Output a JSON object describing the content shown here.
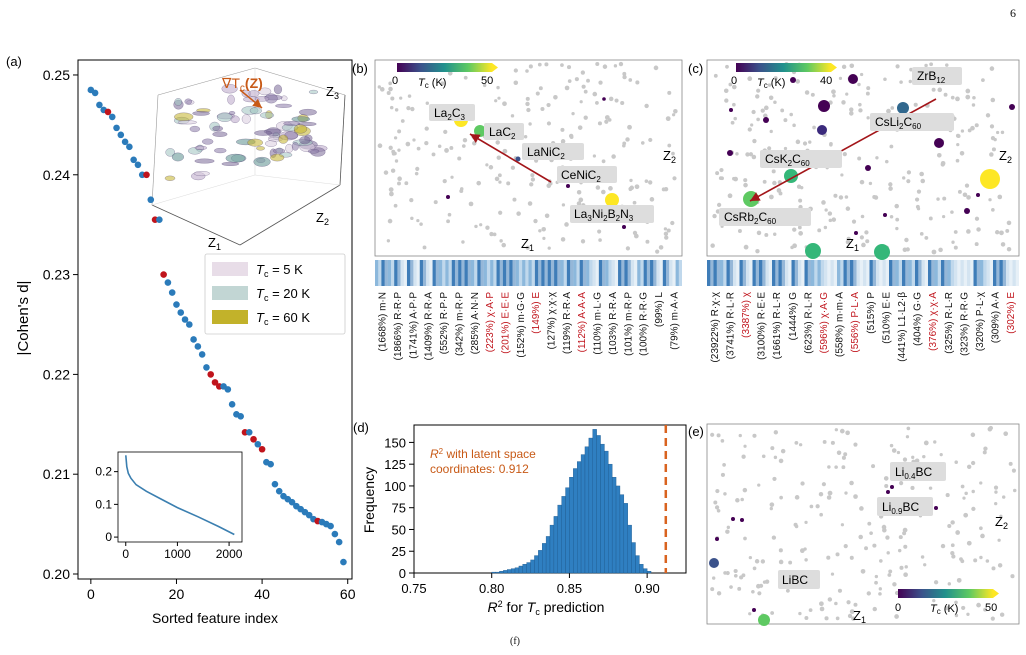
{
  "page": {
    "number": "6",
    "bottom_caption": "(f)"
  },
  "colors": {
    "point_blue": "#2b7bba",
    "point_red": "#c0141c",
    "line_blue": "#3b7fb0",
    "hist_blue": "#2f7fc1",
    "dashed_orange": "#d9631f",
    "annotation_orange": "#c85a17",
    "arrow_red": "#a3161a",
    "bg_gray": "#c8c8c8",
    "label_box": "#dddddd",
    "highlight_red": "#c0141c"
  },
  "chart_data": [
    {
      "panel": "(a)",
      "type": "scatter",
      "xlabel": "Sorted feature index",
      "ylabel": "|Cohen's d|",
      "xlim": [
        -3,
        61
      ],
      "ylim": [
        0.1995,
        0.2515
      ],
      "xticks": [
        "0",
        "20",
        "40",
        "60"
      ],
      "yticks": [
        "0.20",
        "0.21",
        "0.22",
        "0.23",
        "0.24",
        "0.25"
      ],
      "x": [
        0,
        1,
        2,
        3,
        4,
        5,
        6,
        7,
        8,
        9,
        10,
        11,
        12,
        13,
        14,
        15,
        16,
        17,
        18,
        19,
        20,
        21,
        22,
        23,
        24,
        25,
        26,
        27,
        28,
        29,
        30,
        31,
        32,
        33,
        34,
        35,
        36,
        37,
        38,
        39,
        40,
        41,
        42,
        43,
        44,
        45,
        46,
        47,
        48,
        49,
        50,
        51,
        52,
        53,
        54,
        55,
        56,
        57,
        58,
        59
      ],
      "y": [
        0.2485,
        0.2482,
        0.247,
        0.2465,
        0.2463,
        0.2458,
        0.2447,
        0.244,
        0.2433,
        0.2428,
        0.2415,
        0.241,
        0.24,
        0.24,
        0.2375,
        0.2355,
        0.2355,
        0.23,
        0.2292,
        0.2282,
        0.227,
        0.2262,
        0.2255,
        0.225,
        0.2235,
        0.2228,
        0.222,
        0.2207,
        0.22,
        0.2192,
        0.2188,
        0.2188,
        0.2185,
        0.217,
        0.216,
        0.2158,
        0.2142,
        0.2142,
        0.2135,
        0.213,
        0.2125,
        0.2112,
        0.211,
        0.209,
        0.2083,
        0.2078,
        0.2075,
        0.2072,
        0.2068,
        0.2065,
        0.2062,
        0.2059,
        0.2055,
        0.2053,
        0.2052,
        0.205,
        0.2048,
        0.204,
        0.2032,
        0.2012
      ],
      "highlight_indices": [
        4,
        13,
        15,
        17,
        28,
        29,
        30,
        36,
        38,
        40,
        53
      ],
      "inset": {
        "type": "line",
        "xlim": [
          -150,
          2250
        ],
        "ylim": [
          -0.015,
          0.26
        ],
        "xticks": [
          "0",
          "1000",
          "2000"
        ],
        "yticks": [
          "0",
          "0.1",
          "0.2"
        ],
        "x": [
          0,
          20,
          50,
          100,
          200,
          400,
          700,
          1000,
          1400,
          1800,
          2100
        ],
        "y": [
          0.25,
          0.215,
          0.195,
          0.18,
          0.16,
          0.14,
          0.115,
          0.09,
          0.062,
          0.032,
          0.008
        ]
      },
      "surface_3d": {
        "gradient_label": "∇T",
        "gradient_label_sub": "c",
        "gradient_label_arg": "(Z)",
        "axis_labels": [
          "Z",
          "Z",
          "Z"
        ],
        "axis_label_subs": [
          "1",
          "2",
          "3"
        ],
        "legend": [
          {
            "label": "T",
            "sub": "c",
            "value": " = 5 K",
            "color": "#e8dde8"
          },
          {
            "label": "T",
            "sub": "c",
            "value": " = 20 K",
            "color": "#c2d6d4"
          },
          {
            "label": "T",
            "sub": "c",
            "value": " = 60 K",
            "color": "#c2b22a"
          }
        ]
      }
    },
    {
      "panel": "(b)",
      "type": "scatter",
      "axis_labels": {
        "z1": "Z",
        "z2": "Z",
        "sub1": "1",
        "sub2": "2"
      },
      "colorbar": {
        "label": "T",
        "sub": "c",
        "unit": " (K)",
        "min": "0",
        "max": "50"
      },
      "materials": [
        {
          "label": "La",
          "s1": "2",
          "m": "C",
          "s2": "3",
          "rest": ""
        },
        {
          "label": "LaC",
          "s1": "2",
          "m": "",
          "s2": "",
          "rest": ""
        },
        {
          "label": "LaNiC",
          "s1": "2",
          "m": "",
          "s2": "",
          "rest": ""
        },
        {
          "label": "CeNiC",
          "s1": "2",
          "m": "",
          "s2": "",
          "rest": ""
        },
        {
          "label": "La",
          "s1": "3",
          "m": "Ni",
          "s2": "2",
          "rest": "B",
          "s3": "2",
          "rest2": "N",
          "s4": "3"
        }
      ],
      "heatmap_columns": 48,
      "feature_labels": [
        {
          "pct": "(1668%)",
          "name": "m·N",
          "red": false
        },
        {
          "pct": "(1866%)",
          "name": "R·R·P",
          "red": false
        },
        {
          "pct": "(1741%)",
          "name": "A·P·P",
          "red": false
        },
        {
          "pct": "(1409%)",
          "name": "R·R·A",
          "red": false
        },
        {
          "pct": "(552%)",
          "name": "R·P·P",
          "red": false
        },
        {
          "pct": "(342%)",
          "name": "m·R·P",
          "red": false
        },
        {
          "pct": "(285%)",
          "name": "A·N·N",
          "red": false
        },
        {
          "pct": "(223%)",
          "name": "χ·A·P",
          "red": true
        },
        {
          "pct": "(201%)",
          "name": "E·E·E",
          "red": true
        },
        {
          "pct": "(152%)",
          "name": "m·G·G",
          "red": false
        },
        {
          "pct": "(149%)",
          "name": "E",
          "red": true
        },
        {
          "pct": "(127%)",
          "name": "χ·χ·χ",
          "red": false
        },
        {
          "pct": "(119%)",
          "name": "R·R·A",
          "red": false
        },
        {
          "pct": "(112%)",
          "name": "A·A·A",
          "red": true
        },
        {
          "pct": "(110%)",
          "name": "m·L·G",
          "red": false
        },
        {
          "pct": "(103%)",
          "name": "R·R·A",
          "red": false
        },
        {
          "pct": "(101%)",
          "name": "m·R·P",
          "red": false
        },
        {
          "pct": "(100%)",
          "name": "R·R·G",
          "red": false
        },
        {
          "pct": "(99%)",
          "name": "L",
          "red": false
        },
        {
          "pct": "(79%)",
          "name": "m·A·A",
          "red": false
        }
      ]
    },
    {
      "panel": "(c)",
      "type": "scatter",
      "axis_labels": {
        "z1": "Z",
        "z2": "Z",
        "sub1": "1",
        "sub2": "2"
      },
      "colorbar": {
        "label": "T",
        "sub": "c",
        "unit": " (K)",
        "min": "0",
        "max": "40"
      },
      "materials": [
        {
          "label": "ZrB",
          "s1": "12"
        },
        {
          "label": "CsLi",
          "s1": "2",
          "m": "C",
          "s2": "60"
        },
        {
          "label": "CsK",
          "s1": "2",
          "m": "C",
          "s2": "60"
        },
        {
          "label": "CsRb",
          "s1": "2",
          "m": "C",
          "s2": "60"
        }
      ],
      "heatmap_columns": 48,
      "feature_labels": [
        {
          "pct": "(23922%)",
          "name": "R·χ·χ",
          "red": false
        },
        {
          "pct": "(3741%)",
          "name": "R·L·R",
          "red": false
        },
        {
          "pct": "(3387%)",
          "name": "χ",
          "red": true
        },
        {
          "pct": "(3100%)",
          "name": "R·E·E",
          "red": false
        },
        {
          "pct": "(1661%)",
          "name": "R·L·R",
          "red": false
        },
        {
          "pct": "(1444%)",
          "name": "G",
          "red": false
        },
        {
          "pct": "(623%)",
          "name": "R·L·R",
          "red": false
        },
        {
          "pct": "(596%)",
          "name": "χ·A·G",
          "red": true
        },
        {
          "pct": "(558%)",
          "name": "m·m·A",
          "red": false
        },
        {
          "pct": "(556%)",
          "name": "P·L·A",
          "red": true
        },
        {
          "pct": "(515%)",
          "name": "P",
          "red": false
        },
        {
          "pct": "(510%)",
          "name": "E·E",
          "red": false
        },
        {
          "pct": "(441%)",
          "name": "L1·L2·β",
          "red": false
        },
        {
          "pct": "(404%)",
          "name": "G·G",
          "red": false
        },
        {
          "pct": "(376%)",
          "name": "χ·χ·A",
          "red": true
        },
        {
          "pct": "(325%)",
          "name": "R·L·R",
          "red": false
        },
        {
          "pct": "(323%)",
          "name": "R·R·G",
          "red": false
        },
        {
          "pct": "(320%)",
          "name": "P·L·χ",
          "red": false
        },
        {
          "pct": "(309%)",
          "name": "A·A",
          "red": false
        },
        {
          "pct": "(302%)",
          "name": "E",
          "red": true
        }
      ]
    },
    {
      "panel": "(d)",
      "type": "bar",
      "xlabel": "R² for T prediction",
      "xlabel_parts": {
        "r": "R",
        "sup": "2",
        "mid": " for ",
        "t": "T",
        "sub": "c",
        "end": " prediction"
      },
      "ylabel": "Frequency",
      "xlim": [
        0.75,
        0.925
      ],
      "ylim": [
        0,
        170
      ],
      "xticks": [
        "0.75",
        "0.80",
        "0.85",
        "0.90"
      ],
      "yticks": [
        "0",
        "25",
        "50",
        "75",
        "100",
        "125",
        "150"
      ],
      "bin_start": 0.8,
      "bin_width": 0.0025,
      "values": [
        1,
        1,
        2,
        3,
        4,
        5,
        6,
        8,
        10,
        12,
        15,
        20,
        26,
        34,
        42,
        55,
        65,
        78,
        88,
        98,
        110,
        120,
        128,
        136,
        145,
        155,
        165,
        158,
        148,
        140,
        125,
        110,
        100,
        90,
        80,
        55,
        35,
        20,
        10,
        5,
        2
      ],
      "reference_line": 0.912,
      "annotation": {
        "line1_a": "R",
        "line1_sup": "2",
        "line1_b": " with latent space",
        "line2": "coordinates: 0.912"
      }
    },
    {
      "panel": "(e)",
      "type": "scatter",
      "axis_labels": {
        "z1": "Z",
        "z2": "Z",
        "sub1": "1",
        "sub2": "2"
      },
      "colorbar": {
        "label": "T",
        "sub": "c",
        "unit": " (K)",
        "min": "0",
        "max": "50"
      },
      "materials": [
        {
          "label": "Li",
          "s1": "0.4",
          "m": "BC"
        },
        {
          "label": "Li",
          "s1": "0.9",
          "m": "BC"
        },
        {
          "label": "LiBC",
          "s1": "",
          "m": ""
        }
      ]
    }
  ]
}
